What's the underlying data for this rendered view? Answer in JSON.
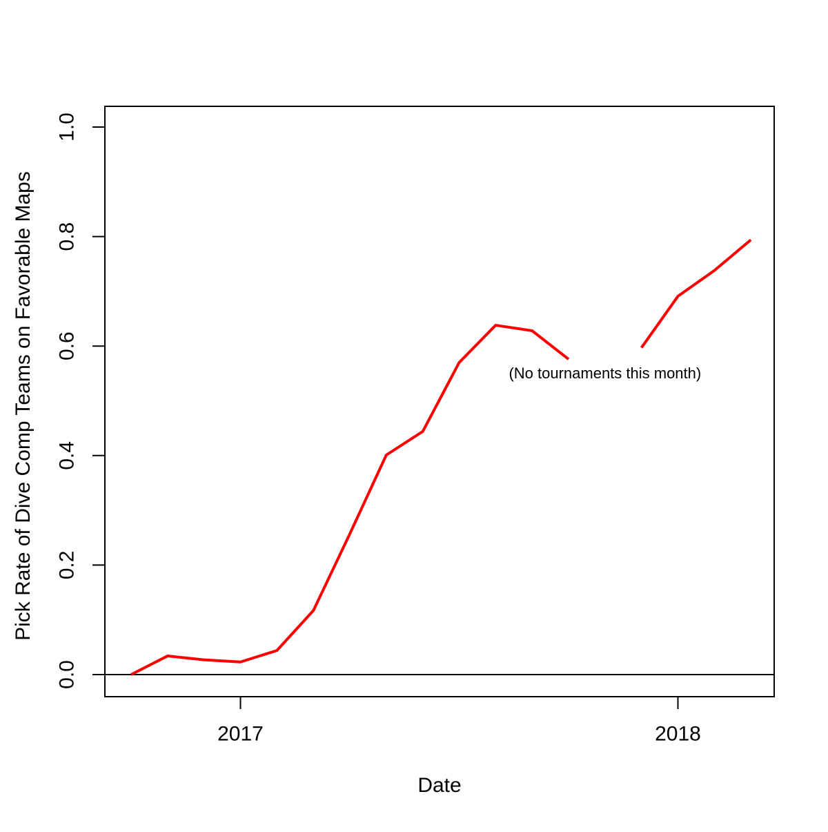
{
  "chart_data": {
    "type": "line",
    "xlabel": "Date",
    "ylabel": "Pick Rate of Dive Comp Teams on Favorable Maps",
    "line_color": "#FF0000",
    "axis_color": "#000000",
    "background_color": "#FFFFFF",
    "grid": false,
    "zero_line": true,
    "legend_position": "none",
    "categories": [
      "2016-10",
      "2016-11",
      "2016-12",
      "2017-01",
      "2017-02",
      "2017-03",
      "2017-04",
      "2017-05",
      "2017-06",
      "2017-07",
      "2017-08",
      "2017-09",
      "2017-10",
      "2017-11",
      "2017-12",
      "2018-01",
      "2018-02",
      "2018-03"
    ],
    "values": [
      0.0,
      0.034,
      0.027,
      0.023,
      0.044,
      0.117,
      0.257,
      0.401,
      0.444,
      0.57,
      0.638,
      0.628,
      0.576,
      null,
      0.597,
      0.691,
      0.738,
      0.794
    ],
    "x_ticks": [
      {
        "label": "2017",
        "category_index": 3
      },
      {
        "label": "2018",
        "category_index": 15
      }
    ],
    "y_ticks": [
      {
        "label": "0.0",
        "value": 0.0
      },
      {
        "label": "0.2",
        "value": 0.2
      },
      {
        "label": "0.4",
        "value": 0.4
      },
      {
        "label": "0.6",
        "value": 0.6
      },
      {
        "label": "0.8",
        "value": 0.8
      },
      {
        "label": "1.0",
        "value": 1.0
      }
    ],
    "ylim": [
      0.0,
      1.0
    ],
    "annotation": {
      "text": "(No tournaments this month)",
      "category_index": 13,
      "value": 0.55
    }
  }
}
